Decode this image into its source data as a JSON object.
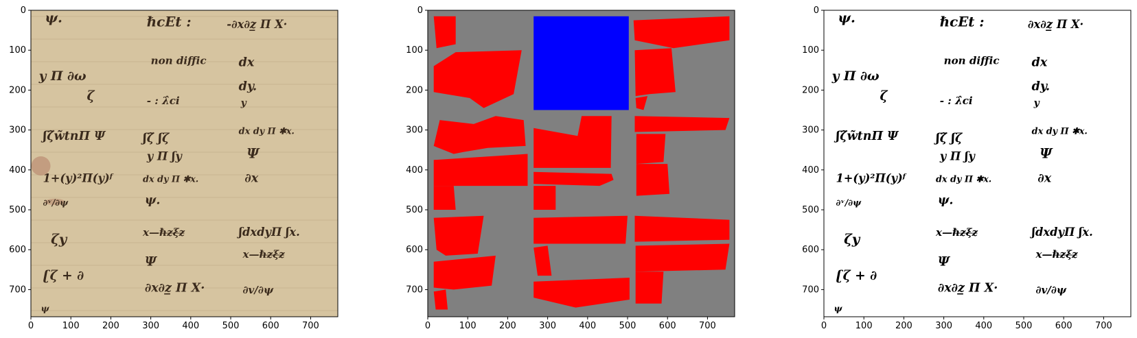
{
  "background": "#ffffff",
  "axis_color": "#000000",
  "x_ticks": [
    "0",
    "100",
    "200",
    "300",
    "400",
    "500",
    "600",
    "700"
  ],
  "y_ticks": [
    "0",
    "100",
    "200",
    "300",
    "400",
    "500",
    "600",
    "700"
  ],
  "x_tick_values": [
    0,
    100,
    200,
    300,
    400,
    500,
    600,
    700
  ],
  "y_tick_values": [
    0,
    100,
    200,
    300,
    400,
    500,
    600,
    700
  ],
  "image_extent": [
    768,
    768
  ],
  "panels": [
    {
      "id": "manuscript",
      "kind": "photo",
      "paper_color": "#d6c4a0",
      "ink_color": "#3a2a1c",
      "stain_color": "#b5846a",
      "texts": [
        {
          "t": "ψ.",
          "x": 35,
          "y": 30,
          "s": 34
        },
        {
          "t": "ℏcEt :",
          "x": 290,
          "y": 40,
          "s": 34
        },
        {
          "t": "-∂x∂z̲ Π X·",
          "x": 490,
          "y": 45,
          "s": 28
        },
        {
          "t": "non diffic",
          "x": 300,
          "y": 135,
          "s": 26
        },
        {
          "t": "dx",
          "x": 520,
          "y": 140,
          "s": 30
        },
        {
          "t": "y Π ∂ω",
          "x": 20,
          "y": 175,
          "s": 32
        },
        {
          "t": "dy.",
          "x": 520,
          "y": 200,
          "s": 30
        },
        {
          "t": "ζ",
          "x": 140,
          "y": 225,
          "s": 32
        },
        {
          "t": "- : λ̂ci",
          "x": 290,
          "y": 235,
          "s": 26
        },
        {
          "t": "y",
          "x": 525,
          "y": 240,
          "s": 24
        },
        {
          "t": "ʃζ̃w̃tnΠ Ψ",
          "x": 30,
          "y": 325,
          "s": 30
        },
        {
          "t": "dx dy Π ✱x.",
          "x": 520,
          "y": 310,
          "s": 22
        },
        {
          "t": "ʃζ̃  ʃζ",
          "x": 280,
          "y": 330,
          "s": 30
        },
        {
          "t": "y Π  ʃy",
          "x": 290,
          "y": 375,
          "s": 28
        },
        {
          "t": "Ψ",
          "x": 540,
          "y": 370,
          "s": 34
        },
        {
          "t": "1+(y)²Π(y)ᶠ",
          "x": 30,
          "y": 430,
          "s": 28
        },
        {
          "t": "dx dy Π ✱x.",
          "x": 280,
          "y": 430,
          "s": 22
        },
        {
          "t": "∂x",
          "x": 535,
          "y": 430,
          "s": 30
        },
        {
          "t": "∂ᵛ/∂ψ",
          "x": 30,
          "y": 490,
          "s": 22
        },
        {
          "t": "ψ.",
          "x": 285,
          "y": 485,
          "s": 30
        },
        {
          "t": "x—ℏ̶z̶ξ̶z̶",
          "x": 280,
          "y": 565,
          "s": 26
        },
        {
          "t": "ʃdxdyΠ ʃx.",
          "x": 520,
          "y": 565,
          "s": 28
        },
        {
          "t": "ζy",
          "x": 50,
          "y": 585,
          "s": 34
        },
        {
          "t": "Ψ",
          "x": 285,
          "y": 640,
          "s": 32
        },
        {
          "t": "x—ℏ̶z̶ξ̶z̶",
          "x": 530,
          "y": 620,
          "s": 26
        },
        {
          "t": "ʗζ + ∂",
          "x": 30,
          "y": 675,
          "s": 32
        },
        {
          "t": "∂x∂z̲ Π X·",
          "x": 285,
          "y": 705,
          "s": 30
        },
        {
          "t": "∂v/∂ψ",
          "x": 530,
          "y": 710,
          "s": 26
        },
        {
          "t": "ψ",
          "x": 25,
          "y": 755,
          "s": 22
        }
      ]
    },
    {
      "id": "mask",
      "kind": "segmentation",
      "background_color": "#808080",
      "fill_colors": [
        "#ff0000",
        "#0000ff"
      ],
      "polygons": [
        {
          "c": 0,
          "pts": [
            [
              15,
              15
            ],
            [
              70,
              15
            ],
            [
              70,
              85
            ],
            [
              22,
              95
            ]
          ]
        },
        {
          "c": 0,
          "pts": [
            [
              15,
              140
            ],
            [
              70,
              105
            ],
            [
              235,
              100
            ],
            [
              215,
              210
            ],
            [
              140,
              245
            ],
            [
              105,
              220
            ],
            [
              15,
              205
            ]
          ]
        },
        {
          "c": 1,
          "pts": [
            [
              265,
              15
            ],
            [
              503,
              15
            ],
            [
              503,
              250
            ],
            [
              265,
              250
            ]
          ]
        },
        {
          "c": 0,
          "pts": [
            [
              515,
              25
            ],
            [
              755,
              15
            ],
            [
              755,
              75
            ],
            [
              615,
              95
            ],
            [
              518,
              75
            ]
          ]
        },
        {
          "c": 0,
          "pts": [
            [
              518,
              100
            ],
            [
              610,
              95
            ],
            [
              620,
              205
            ],
            [
              555,
              210
            ],
            [
              520,
              215
            ]
          ]
        },
        {
          "c": 0,
          "pts": [
            [
              520,
              220
            ],
            [
              550,
              215
            ],
            [
              540,
              250
            ],
            [
              522,
              245
            ]
          ]
        },
        {
          "c": 0,
          "pts": [
            [
              30,
              275
            ],
            [
              115,
              285
            ],
            [
              170,
              265
            ],
            [
              240,
              275
            ],
            [
              245,
              340
            ],
            [
              150,
              345
            ],
            [
              90,
              355
            ],
            [
              65,
              360
            ],
            [
              15,
              340
            ]
          ]
        },
        {
          "c": 0,
          "pts": [
            [
              265,
              295
            ],
            [
              375,
              315
            ],
            [
              385,
              265
            ],
            [
              460,
              265
            ],
            [
              458,
              395
            ],
            [
              410,
              395
            ],
            [
              265,
              395
            ]
          ]
        },
        {
          "c": 0,
          "pts": [
            [
              518,
              265
            ],
            [
              755,
              270
            ],
            [
              745,
              300
            ],
            [
              518,
              305
            ]
          ]
        },
        {
          "c": 0,
          "pts": [
            [
              522,
              310
            ],
            [
              595,
              310
            ],
            [
              590,
              380
            ],
            [
              522,
              385
            ]
          ]
        },
        {
          "c": 0,
          "pts": [
            [
              15,
              375
            ],
            [
              250,
              360
            ],
            [
              250,
              440
            ],
            [
              15,
              440
            ]
          ]
        },
        {
          "c": 0,
          "pts": [
            [
              265,
              405
            ],
            [
              460,
              410
            ],
            [
              465,
              425
            ],
            [
              430,
              440
            ],
            [
              265,
              435
            ]
          ]
        },
        {
          "c": 0,
          "pts": [
            [
              522,
              385
            ],
            [
              600,
              385
            ],
            [
              605,
              460
            ],
            [
              522,
              465
            ]
          ]
        },
        {
          "c": 0,
          "pts": [
            [
              15,
              440
            ],
            [
              65,
              440
            ],
            [
              70,
              500
            ],
            [
              15,
              500
            ]
          ]
        },
        {
          "c": 0,
          "pts": [
            [
              265,
              440
            ],
            [
              320,
              440
            ],
            [
              320,
              500
            ],
            [
              265,
              500
            ]
          ]
        },
        {
          "c": 0,
          "pts": [
            [
              15,
              520
            ],
            [
              140,
              515
            ],
            [
              125,
              610
            ],
            [
              45,
              615
            ],
            [
              22,
              600
            ]
          ]
        },
        {
          "c": 0,
          "pts": [
            [
              265,
              520
            ],
            [
              500,
              515
            ],
            [
              495,
              585
            ],
            [
              265,
              585
            ]
          ]
        },
        {
          "c": 0,
          "pts": [
            [
              518,
              515
            ],
            [
              755,
              525
            ],
            [
              755,
              575
            ],
            [
              518,
              580
            ]
          ]
        },
        {
          "c": 0,
          "pts": [
            [
              15,
              630
            ],
            [
              170,
              615
            ],
            [
              160,
              690
            ],
            [
              65,
              700
            ],
            [
              15,
              695
            ]
          ]
        },
        {
          "c": 0,
          "pts": [
            [
              265,
              595
            ],
            [
              300,
              590
            ],
            [
              310,
              665
            ],
            [
              275,
              665
            ]
          ]
        },
        {
          "c": 0,
          "pts": [
            [
              520,
              590
            ],
            [
              755,
              585
            ],
            [
              745,
              650
            ],
            [
              520,
              655
            ]
          ]
        },
        {
          "c": 0,
          "pts": [
            [
              265,
              680
            ],
            [
              505,
              670
            ],
            [
              505,
              725
            ],
            [
              370,
              745
            ],
            [
              265,
              720
            ]
          ]
        },
        {
          "c": 0,
          "pts": [
            [
              520,
              655
            ],
            [
              590,
              655
            ],
            [
              585,
              735
            ],
            [
              520,
              735
            ]
          ]
        },
        {
          "c": 0,
          "pts": [
            [
              15,
              705
            ],
            [
              45,
              700
            ],
            [
              50,
              750
            ],
            [
              20,
              750
            ]
          ]
        }
      ]
    },
    {
      "id": "binarized",
      "kind": "binary",
      "paper_color": "#ffffff",
      "ink_color": "#000000",
      "texts": [
        {
          "t": "ψ.",
          "x": 35,
          "y": 30,
          "s": 34
        },
        {
          "t": "ℏcEt :",
          "x": 290,
          "y": 40,
          "s": 34
        },
        {
          "t": "∂x∂z̲ Π X·",
          "x": 510,
          "y": 45,
          "s": 28
        },
        {
          "t": "non diffic",
          "x": 300,
          "y": 135,
          "s": 26
        },
        {
          "t": "dx",
          "x": 520,
          "y": 140,
          "s": 30
        },
        {
          "t": "y Π ∂ω",
          "x": 20,
          "y": 175,
          "s": 32
        },
        {
          "t": "dy.",
          "x": 520,
          "y": 200,
          "s": 30
        },
        {
          "t": "ζ",
          "x": 140,
          "y": 225,
          "s": 32
        },
        {
          "t": "- : λ̂ci",
          "x": 290,
          "y": 235,
          "s": 26
        },
        {
          "t": "y",
          "x": 525,
          "y": 240,
          "s": 24
        },
        {
          "t": "ʃζ̃w̃tnΠ Ψ",
          "x": 30,
          "y": 325,
          "s": 30
        },
        {
          "t": "dx dy Π ✱x.",
          "x": 520,
          "y": 310,
          "s": 22
        },
        {
          "t": "ʃζ̃  ʃζ",
          "x": 280,
          "y": 330,
          "s": 30
        },
        {
          "t": "y Π  ʃy",
          "x": 290,
          "y": 375,
          "s": 28
        },
        {
          "t": "Ψ",
          "x": 540,
          "y": 370,
          "s": 34
        },
        {
          "t": "1+(y)²Π(y)ᶠ",
          "x": 30,
          "y": 430,
          "s": 28
        },
        {
          "t": "dx dy Π ✱x.",
          "x": 280,
          "y": 430,
          "s": 22
        },
        {
          "t": "∂x",
          "x": 535,
          "y": 430,
          "s": 30
        },
        {
          "t": "∂ᵛ/∂ψ",
          "x": 30,
          "y": 490,
          "s": 22
        },
        {
          "t": "ψ.",
          "x": 285,
          "y": 485,
          "s": 30
        },
        {
          "t": "x—ℏ̶z̶ξ̶z̶",
          "x": 280,
          "y": 565,
          "s": 26
        },
        {
          "t": "ʃdxdyΠ ʃx.",
          "x": 520,
          "y": 565,
          "s": 28
        },
        {
          "t": "ζy",
          "x": 50,
          "y": 585,
          "s": 34
        },
        {
          "t": "Ψ",
          "x": 285,
          "y": 640,
          "s": 32
        },
        {
          "t": "x—ℏ̶z̶ξ̶z̶",
          "x": 530,
          "y": 620,
          "s": 26
        },
        {
          "t": "ʗζ + ∂",
          "x": 30,
          "y": 675,
          "s": 32
        },
        {
          "t": "∂x∂z̲ Π X·",
          "x": 285,
          "y": 705,
          "s": 30
        },
        {
          "t": "∂v/∂ψ",
          "x": 530,
          "y": 710,
          "s": 26
        },
        {
          "t": "ψ",
          "x": 25,
          "y": 755,
          "s": 22
        }
      ]
    }
  ]
}
